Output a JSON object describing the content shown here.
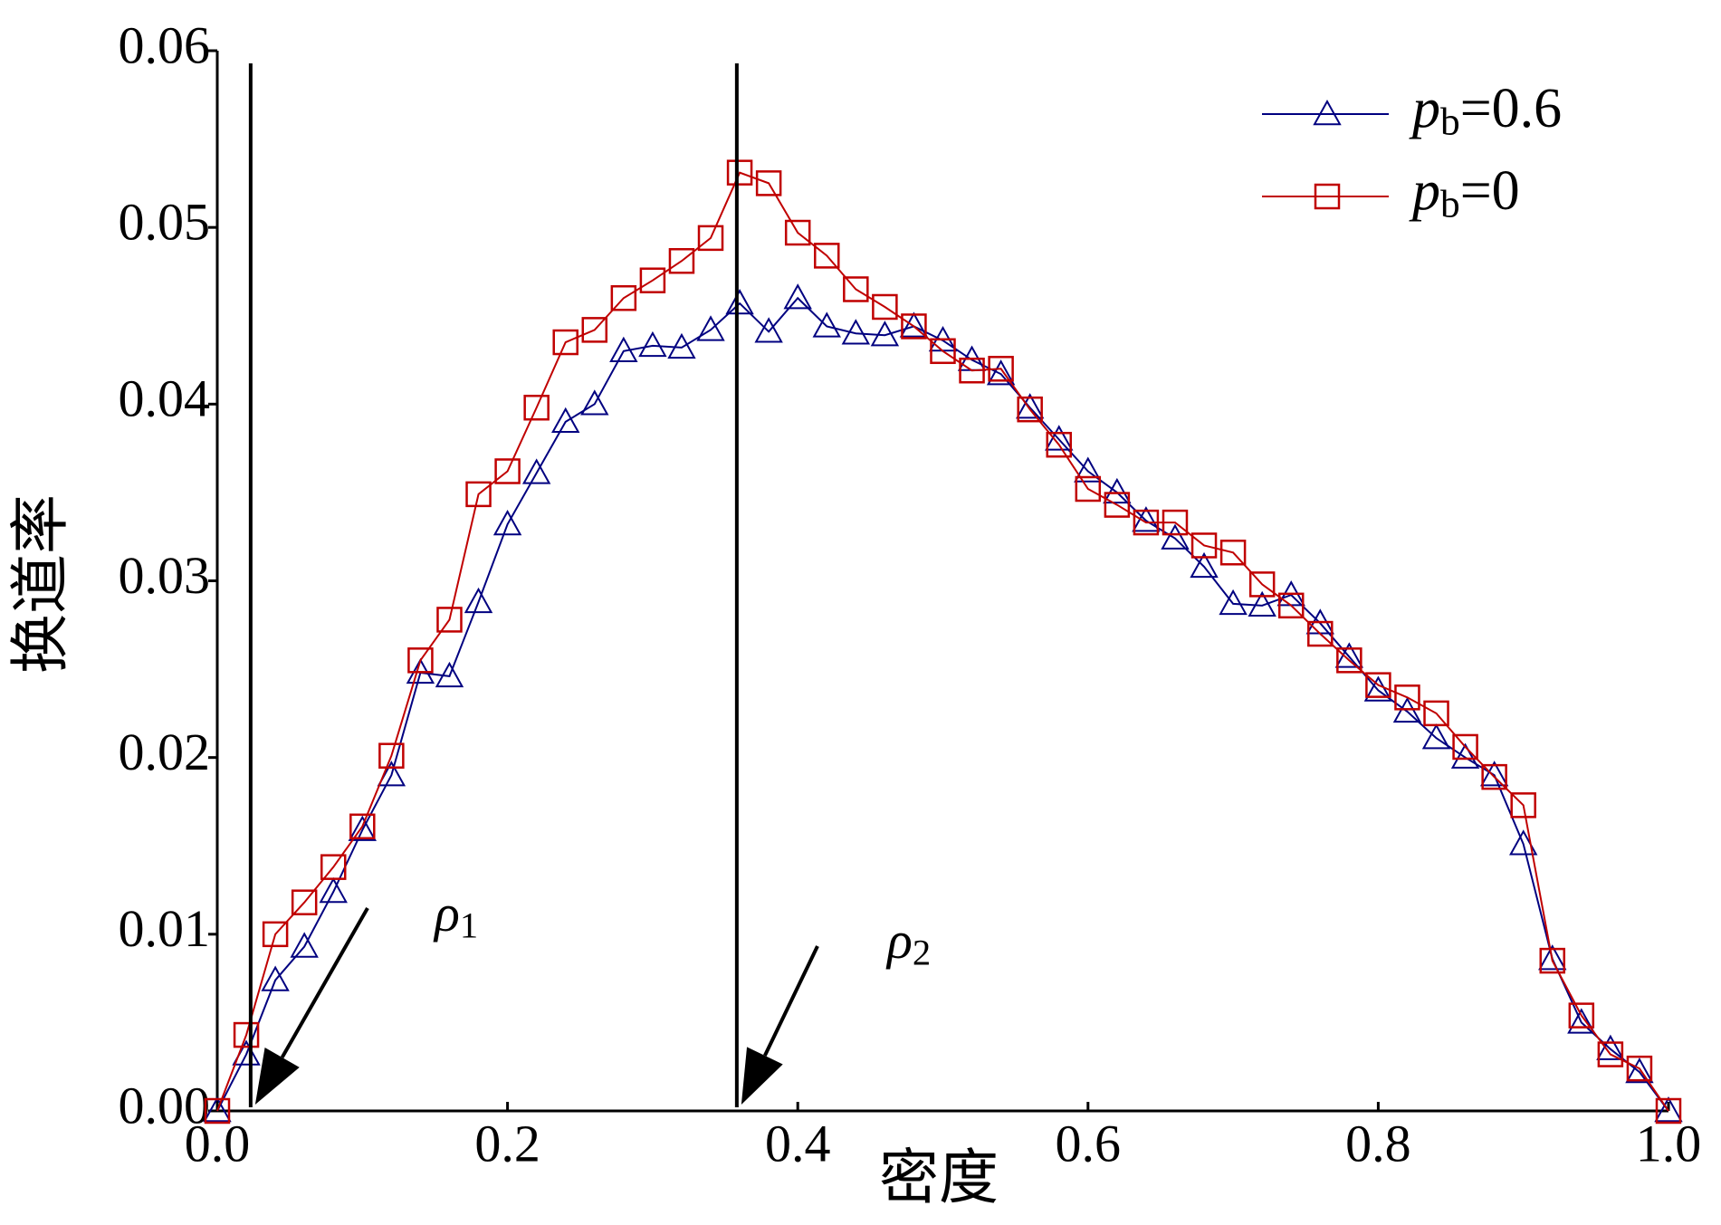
{
  "chart_data": {
    "type": "line",
    "x_label": "密度",
    "y_label": "换道率",
    "x": [
      0,
      0.02,
      0.04,
      0.06,
      0.08,
      0.1,
      0.12,
      0.14,
      0.16,
      0.18,
      0.2,
      0.22,
      0.24,
      0.26,
      0.28,
      0.3,
      0.32,
      0.34,
      0.36,
      0.38,
      0.4,
      0.42,
      0.44,
      0.46,
      0.48,
      0.5,
      0.52,
      0.54,
      0.56,
      0.58,
      0.6,
      0.62,
      0.64,
      0.66,
      0.68,
      0.7,
      0.72,
      0.74,
      0.76,
      0.78,
      0.8,
      0.82,
      0.84,
      0.86,
      0.88,
      0.9,
      0.92,
      0.94,
      0.96,
      0.98,
      1.0
    ],
    "series": [
      {
        "name": "pb=0.6",
        "color": "#000080",
        "marker": "triangle",
        "values": [
          0,
          0.0032,
          0.0074,
          0.0093,
          0.0124,
          0.0159,
          0.019,
          0.0248,
          0.0246,
          0.0288,
          0.0332,
          0.0361,
          0.039,
          0.04,
          0.043,
          0.0433,
          0.0432,
          0.0442,
          0.0457,
          0.0441,
          0.046,
          0.0444,
          0.044,
          0.0439,
          0.0444,
          0.0436,
          0.0425,
          0.0417,
          0.0398,
          0.038,
          0.0362,
          0.035,
          0.0334,
          0.0324,
          0.0308,
          0.0287,
          0.0286,
          0.0292,
          0.0276,
          0.0257,
          0.0238,
          0.0226,
          0.0211,
          0.02,
          0.019,
          0.0151,
          0.0086,
          0.005,
          0.0035,
          0.0022,
          0
        ]
      },
      {
        "name": "pb=0",
        "color": "#c00000",
        "marker": "square",
        "values": [
          0,
          0.0043,
          0.01,
          0.0118,
          0.0138,
          0.0161,
          0.0201,
          0.0255,
          0.0278,
          0.0349,
          0.0362,
          0.0398,
          0.0435,
          0.0442,
          0.046,
          0.047,
          0.0481,
          0.0494,
          0.0531,
          0.0525,
          0.0497,
          0.0484,
          0.0465,
          0.0455,
          0.0444,
          0.043,
          0.0419,
          0.042,
          0.0397,
          0.0377,
          0.0352,
          0.0343,
          0.0333,
          0.0333,
          0.032,
          0.0316,
          0.0298,
          0.0286,
          0.027,
          0.0255,
          0.0241,
          0.0234,
          0.0225,
          0.0206,
          0.0189,
          0.0173,
          0.0085,
          0.0054,
          0.0032,
          0.0024,
          0
        ]
      }
    ],
    "annotations": [
      {
        "text": "ρ1",
        "x": 0.023
      },
      {
        "text": "ρ2",
        "x": 0.358
      }
    ],
    "xlim": [
      0,
      1.0
    ],
    "xticks": [
      {
        "value": 0,
        "label": "0.0"
      },
      0.2,
      0.4,
      0.6,
      0.8,
      {
        "value": 1.0,
        "label": "1.0"
      }
    ],
    "ylim": [
      0,
      0.06
    ],
    "yticks": [
      {
        "value": 0,
        "label": "0.00"
      },
      0.01,
      0.02,
      0.03,
      0.04,
      0.05,
      0.06
    ],
    "legend": "upper-right"
  }
}
